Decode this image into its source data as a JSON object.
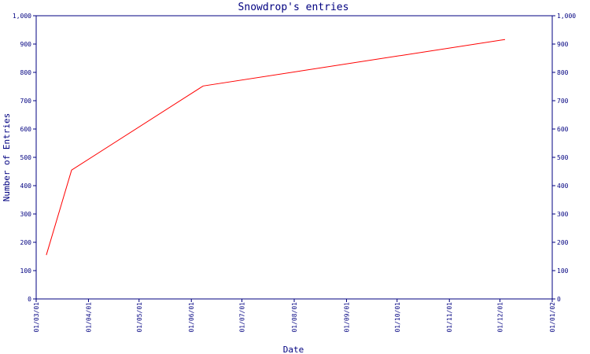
{
  "chart_data": {
    "type": "line",
    "title": "Snowdrop's entries",
    "xlabel": "Date",
    "ylabel": "Number of Entries",
    "ylim": [
      0,
      1000
    ],
    "y_ticks": [
      0,
      100,
      200,
      300,
      400,
      500,
      600,
      700,
      800,
      900,
      1000
    ],
    "y_tick_labels": [
      "0",
      "100",
      "200",
      "300",
      "400",
      "500",
      "600",
      "700",
      "800",
      "900",
      "1,000"
    ],
    "x_ticks": [
      "2001-03-01",
      "2001-04-01",
      "2001-05-01",
      "2001-06-01",
      "2001-07-01",
      "2001-08-01",
      "2001-09-01",
      "2001-10-01",
      "2001-11-01",
      "2001-12-01",
      "2002-01-01"
    ],
    "x_tick_labels": [
      "01/03/01",
      "01/04/01",
      "01/05/01",
      "01/06/01",
      "01/07/01",
      "01/08/01",
      "01/09/01",
      "01/10/01",
      "01/11/01",
      "01/12/01",
      "01/01/02"
    ],
    "xlim": [
      "2001-03-01",
      "2002-01-01"
    ],
    "series": [
      {
        "x": [
          "2001-03-07",
          "2001-03-22",
          "2001-06-08",
          "2001-12-04"
        ],
        "y": [
          155,
          455,
          752,
          916
        ]
      }
    ],
    "grid": false,
    "colors": {
      "line": "#ff0000",
      "axis": "#000080",
      "text": "#000080"
    }
  }
}
